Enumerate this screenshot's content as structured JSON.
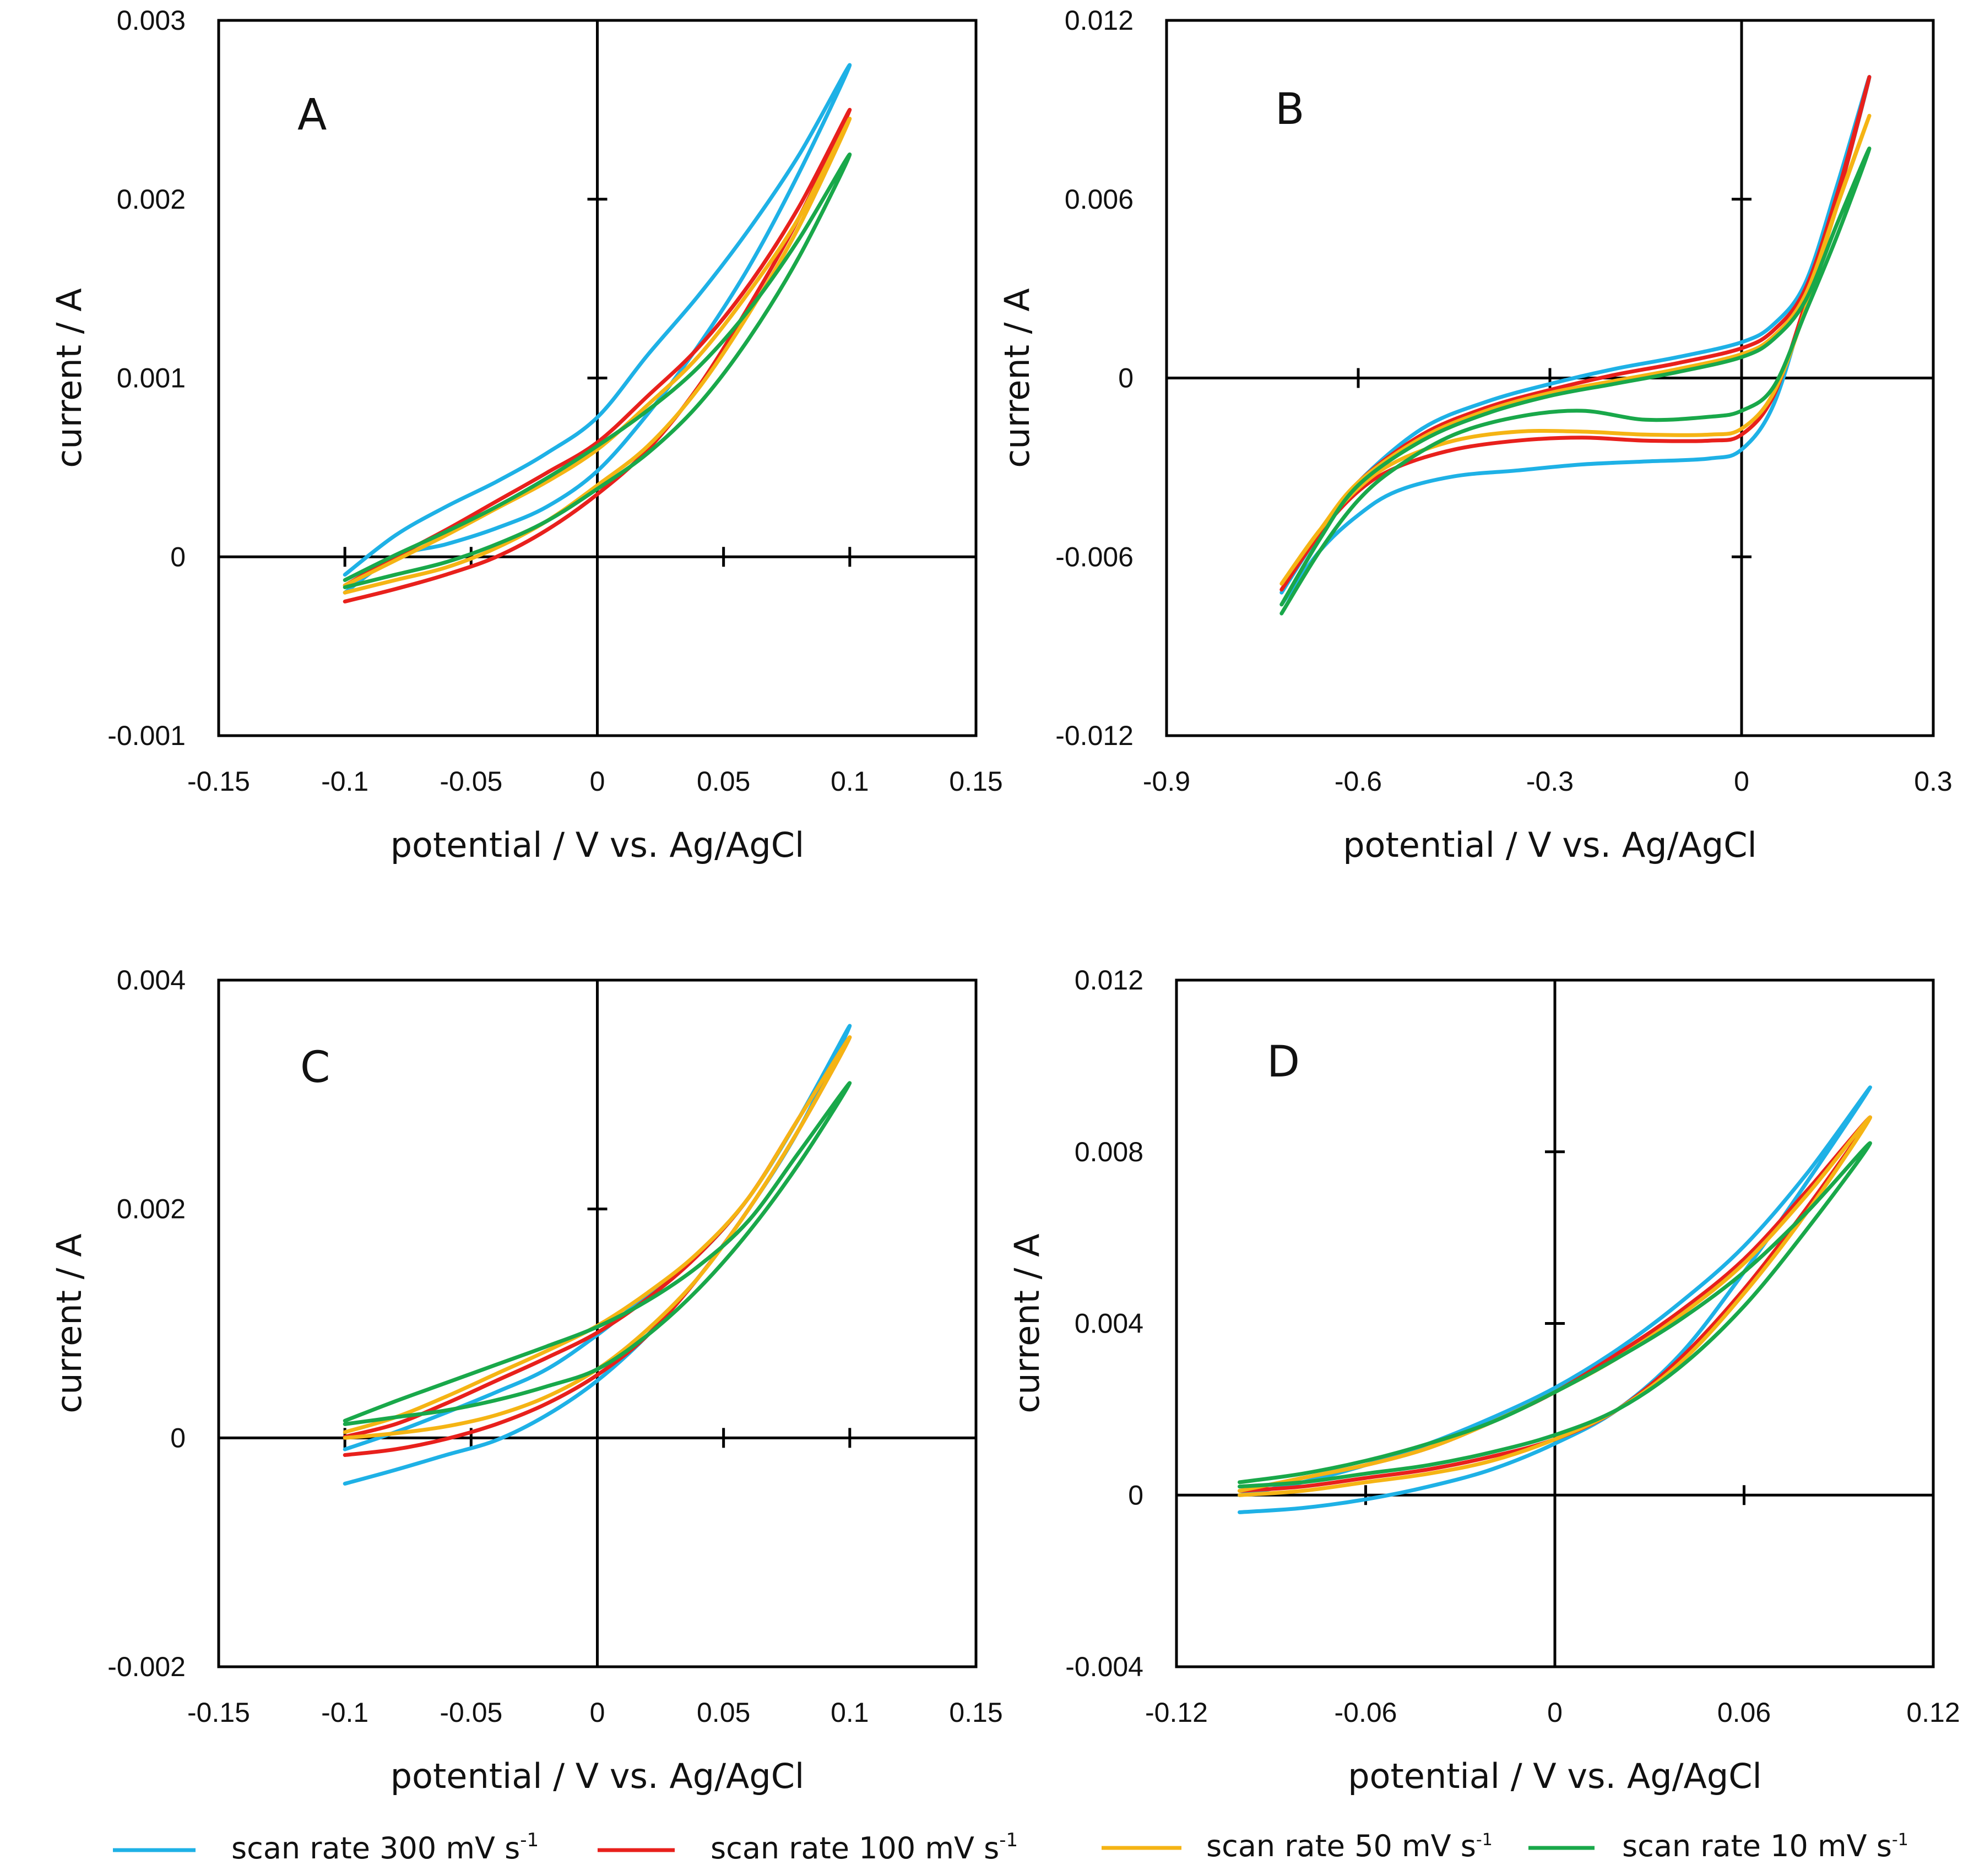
{
  "legend": [
    {
      "label": "scan rate 300 mV s",
      "sup": "-1",
      "color": "#1EB1E6"
    },
    {
      "label": "scan rate 100 mV s",
      "sup": "-1",
      "color": "#E8201C"
    },
    {
      "label": "scan rate 50 mV s",
      "sup": "-1",
      "color": "#F5B414"
    },
    {
      "label": "scan rate 10 mV s",
      "sup": "-1",
      "color": "#19A84A"
    }
  ],
  "chart_data": [
    {
      "type": "line",
      "panel": "A",
      "title": "A",
      "xlabel": "potential / V vs. Ag/AgCl",
      "ylabel": "current / A",
      "xlim": [
        -0.15,
        0.15
      ],
      "ylim": [
        -0.001,
        0.003
      ],
      "xticks": [
        "-0.15",
        "-0.1",
        "-0.05",
        "0",
        "0.05",
        "0.1",
        "0.15"
      ],
      "xtick_values": [
        -0.15,
        -0.1,
        -0.05,
        0,
        0.05,
        0.1,
        0.15
      ],
      "yticks": [
        "-0.001",
        "0",
        "0.001",
        "0.002",
        "0.003"
      ],
      "ytick_values": [
        -0.001,
        0,
        0.001,
        0.002,
        0.003
      ],
      "series": [
        {
          "name": "scan rate 300 mV s-1",
          "color": "#1EB1E6",
          "x": [
            -0.1,
            -0.08,
            -0.06,
            -0.04,
            -0.02,
            0.0,
            0.02,
            0.04,
            0.06,
            0.08,
            0.1,
            0.08,
            0.06,
            0.04,
            0.02,
            0.0,
            -0.02,
            -0.04,
            -0.06,
            -0.08,
            -0.1
          ],
          "y": [
            -0.0002,
            0.0,
            7e-05,
            0.00016,
            0.00028,
            0.00048,
            0.0008,
            0.00118,
            0.00162,
            0.00215,
            0.00275,
            0.00225,
            0.00183,
            0.00146,
            0.00113,
            0.00078,
            0.00058,
            0.00042,
            0.00028,
            0.00012,
            -0.0001
          ]
        },
        {
          "name": "scan rate 100 mV s-1",
          "color": "#E8201C",
          "x": [
            -0.1,
            -0.08,
            -0.06,
            -0.04,
            -0.02,
            0.0,
            0.02,
            0.04,
            0.06,
            0.08,
            0.1,
            0.08,
            0.06,
            0.04,
            0.02,
            0.0,
            -0.02,
            -0.04,
            -0.06,
            -0.08,
            -0.1
          ],
          "y": [
            -0.00025,
            -0.00018,
            -0.0001,
            0.0,
            0.00015,
            0.00035,
            0.0006,
            0.00095,
            0.0014,
            0.0019,
            0.0025,
            0.00196,
            0.00152,
            0.00117,
            0.0009,
            0.00064,
            0.00047,
            0.00031,
            0.00015,
            0.0,
            -0.00016
          ]
        },
        {
          "name": "scan rate 50 mV s-1",
          "color": "#F5B414",
          "x": [
            -0.1,
            -0.08,
            -0.06,
            -0.04,
            -0.02,
            0.0,
            0.02,
            0.04,
            0.06,
            0.08,
            0.1,
            0.08,
            0.06,
            0.04,
            0.02,
            0.0,
            -0.02,
            -0.04,
            -0.06,
            -0.08,
            -0.1
          ],
          "y": [
            -0.0002,
            -0.00013,
            -6e-05,
            5e-05,
            0.0002,
            0.0004,
            0.00062,
            0.00094,
            0.00136,
            0.00185,
            0.00245,
            0.0019,
            0.00148,
            0.00112,
            0.00085,
            0.0006,
            0.00042,
            0.00027,
            0.00012,
            -2e-05,
            -0.00016
          ]
        },
        {
          "name": "scan rate 10 mV s-1",
          "color": "#19A84A",
          "x": [
            -0.1,
            -0.08,
            -0.06,
            -0.04,
            -0.02,
            0.0,
            0.02,
            0.04,
            0.06,
            0.08,
            0.1,
            0.08,
            0.06,
            0.04,
            0.02,
            0.0,
            -0.02,
            -0.04,
            -0.06,
            -0.08,
            -0.1
          ],
          "y": [
            -0.00017,
            -0.0001,
            -3e-05,
            7e-05,
            0.0002,
            0.00038,
            0.00058,
            0.00085,
            0.00122,
            0.00168,
            0.00225,
            0.00178,
            0.00138,
            0.00106,
            0.00082,
            0.00062,
            0.00044,
            0.00028,
            0.00014,
            1e-05,
            -0.00013
          ]
        }
      ]
    },
    {
      "type": "line",
      "panel": "B",
      "title": "B",
      "xlabel": "potential / V vs. Ag/AgCl",
      "ylabel": "current / A",
      "xlim": [
        -0.9,
        0.3
      ],
      "ylim": [
        -0.012,
        0.012
      ],
      "xticks": [
        "-0.9",
        "-0.6",
        "-0.3",
        "0",
        "0.3"
      ],
      "xtick_values": [
        -0.9,
        -0.6,
        -0.3,
        0,
        0.3
      ],
      "yticks": [
        "-0.012",
        "-0.006",
        "0",
        "0.006",
        "0.012"
      ],
      "ytick_values": [
        -0.012,
        -0.006,
        0,
        0.006,
        0.012
      ],
      "series": [
        {
          "name": "scan rate 300 mV s-1",
          "color": "#1EB1E6",
          "x": [
            -0.72,
            -0.66,
            -0.6,
            -0.54,
            -0.45,
            -0.35,
            -0.25,
            -0.15,
            -0.05,
            0.0,
            0.05,
            0.1,
            0.15,
            0.2,
            0.15,
            0.1,
            0.05,
            0.0,
            -0.1,
            -0.2,
            -0.3,
            -0.4,
            -0.5,
            -0.6,
            -0.66,
            -0.72
          ],
          "y": [
            -0.0076,
            -0.0058,
            -0.0046,
            -0.0038,
            -0.0033,
            -0.0031,
            -0.0029,
            -0.0028,
            -0.0027,
            -0.0024,
            -0.0009,
            0.0025,
            0.006,
            0.0101,
            0.0065,
            0.0032,
            0.0018,
            0.0012,
            0.0007,
            0.0003,
            -0.0002,
            -0.0008,
            -0.0017,
            -0.0035,
            -0.0052,
            -0.0072
          ]
        },
        {
          "name": "scan rate 100 mV s-1",
          "color": "#E8201C",
          "x": [
            -0.72,
            -0.66,
            -0.6,
            -0.54,
            -0.45,
            -0.35,
            -0.25,
            -0.15,
            -0.05,
            0.0,
            0.05,
            0.1,
            0.15,
            0.2,
            0.15,
            0.1,
            0.05,
            0.0,
            -0.1,
            -0.2,
            -0.3,
            -0.4,
            -0.5,
            -0.6,
            -0.66,
            -0.72
          ],
          "y": [
            -0.0071,
            -0.0052,
            -0.0038,
            -0.003,
            -0.0024,
            -0.0021,
            -0.002,
            -0.0021,
            -0.0021,
            -0.0019,
            -0.0006,
            0.0025,
            0.006,
            0.0101,
            0.0062,
            0.003,
            0.0016,
            0.001,
            0.0005,
            0.0001,
            -0.0004,
            -0.001,
            -0.0019,
            -0.0035,
            -0.0052,
            -0.0071
          ]
        },
        {
          "name": "scan rate 50 mV s-1",
          "color": "#F5B414",
          "x": [
            -0.72,
            -0.66,
            -0.6,
            -0.54,
            -0.45,
            -0.35,
            -0.25,
            -0.15,
            -0.05,
            0.0,
            0.05,
            0.1,
            0.15,
            0.2,
            0.15,
            0.1,
            0.05,
            0.0,
            -0.1,
            -0.2,
            -0.3,
            -0.4,
            -0.5,
            -0.6,
            -0.66,
            -0.72
          ],
          "y": [
            -0.0069,
            -0.0051,
            -0.0037,
            -0.0028,
            -0.0021,
            -0.0018,
            -0.0018,
            -0.0019,
            -0.0019,
            -0.0017,
            -0.0005,
            0.0023,
            0.0058,
            0.0088,
            0.0058,
            0.0028,
            0.0014,
            0.0008,
            0.0003,
            -0.0001,
            -0.0005,
            -0.0011,
            -0.002,
            -0.0035,
            -0.0051,
            -0.0069
          ]
        },
        {
          "name": "scan rate 10 mV s-1",
          "color": "#19A84A",
          "x": [
            -0.72,
            -0.66,
            -0.6,
            -0.54,
            -0.45,
            -0.35,
            -0.25,
            -0.15,
            -0.05,
            0.0,
            0.05,
            0.1,
            0.15,
            0.2,
            0.15,
            0.1,
            0.05,
            0.0,
            -0.1,
            -0.2,
            -0.3,
            -0.4,
            -0.5,
            -0.6,
            -0.66,
            -0.72
          ],
          "y": [
            -0.0079,
            -0.0058,
            -0.0041,
            -0.003,
            -0.0019,
            -0.0013,
            -0.0011,
            -0.0014,
            -0.0013,
            -0.0011,
            -0.0003,
            0.0022,
            0.0048,
            0.0077,
            0.0052,
            0.0026,
            0.0013,
            0.0007,
            0.0002,
            -0.0002,
            -0.0006,
            -0.0012,
            -0.0021,
            -0.0036,
            -0.0054,
            -0.0076
          ]
        }
      ]
    },
    {
      "type": "line",
      "panel": "C",
      "title": "C",
      "xlabel": "potential / V vs. Ag/AgCl",
      "ylabel": "current / A",
      "xlim": [
        -0.15,
        0.15
      ],
      "ylim": [
        -0.002,
        0.004
      ],
      "xticks": [
        "-0.15",
        "-0.1",
        "-0.05",
        "0",
        "0.05",
        "0.1",
        "0.15"
      ],
      "xtick_values": [
        -0.15,
        -0.1,
        -0.05,
        0,
        0.05,
        0.1,
        0.15
      ],
      "yticks": [
        "-0.002",
        "0",
        "0.002",
        "0.004"
      ],
      "ytick_values": [
        -0.002,
        0,
        0.002,
        0.004
      ],
      "series": [
        {
          "name": "scan rate 300 mV s-1",
          "color": "#1EB1E6",
          "x": [
            -0.1,
            -0.08,
            -0.06,
            -0.04,
            -0.02,
            0.0,
            0.02,
            0.04,
            0.06,
            0.08,
            0.1,
            0.08,
            0.06,
            0.04,
            0.02,
            0.0,
            -0.02,
            -0.04,
            -0.06,
            -0.08,
            -0.1
          ],
          "y": [
            -0.0004,
            -0.00028,
            -0.00015,
            -2e-05,
            0.0002,
            0.0005,
            0.0009,
            0.0014,
            0.002,
            0.0027,
            0.0036,
            0.0028,
            0.0021,
            0.0016,
            0.00125,
            0.0009,
            0.0006,
            0.0004,
            0.00022,
            5e-05,
            -0.0001
          ]
        },
        {
          "name": "scan rate 100 mV s-1",
          "color": "#E8201C",
          "x": [
            -0.1,
            -0.08,
            -0.06,
            -0.04,
            -0.02,
            0.0,
            0.02,
            0.04,
            0.06,
            0.08,
            0.1,
            0.08,
            0.06,
            0.04,
            0.02,
            0.0,
            -0.02,
            -0.04,
            -0.06,
            -0.08,
            -0.1
          ],
          "y": [
            -0.00015,
            -0.0001,
            -1e-05,
            0.00012,
            0.0003,
            0.00055,
            0.0009,
            0.0014,
            0.002,
            0.0027,
            0.0035,
            0.0028,
            0.0021,
            0.0016,
            0.00122,
            0.00092,
            0.0007,
            0.0005,
            0.0003,
            0.00012,
            1e-05
          ]
        },
        {
          "name": "scan rate 50 mV s-1",
          "color": "#F5B414",
          "x": [
            -0.1,
            -0.08,
            -0.06,
            -0.04,
            -0.02,
            0.0,
            0.02,
            0.04,
            0.06,
            0.08,
            0.1,
            0.08,
            0.06,
            0.04,
            0.02,
            0.0,
            -0.02,
            -0.04,
            -0.06,
            -0.08,
            -0.1
          ],
          "y": [
            0.0,
            4e-05,
            0.0001,
            0.0002,
            0.00036,
            0.0006,
            0.00095,
            0.0014,
            0.002,
            0.0027,
            0.0035,
            0.0028,
            0.0021,
            0.00162,
            0.00127,
            0.00098,
            0.00076,
            0.00056,
            0.00036,
            0.00018,
            5e-05
          ]
        },
        {
          "name": "scan rate 10 mV s-1",
          "color": "#19A84A",
          "x": [
            -0.1,
            -0.08,
            -0.06,
            -0.04,
            -0.02,
            0.0,
            0.02,
            0.04,
            0.06,
            0.08,
            0.1,
            0.08,
            0.06,
            0.04,
            0.02,
            0.0,
            -0.02,
            -0.04,
            -0.06,
            -0.08,
            -0.1
          ],
          "y": [
            0.00012,
            0.00018,
            0.00024,
            0.00033,
            0.00045,
            0.0006,
            0.0009,
            0.0013,
            0.0018,
            0.0024,
            0.0031,
            0.0025,
            0.0019,
            0.0015,
            0.0012,
            0.00097,
            0.0008,
            0.00064,
            0.00048,
            0.00032,
            0.00015
          ]
        }
      ]
    },
    {
      "type": "line",
      "panel": "D",
      "title": "D",
      "xlabel": "potential / V vs. Ag/AgCl",
      "ylabel": "current / A",
      "xlim": [
        -0.12,
        0.12
      ],
      "ylim": [
        -0.004,
        0.012
      ],
      "xticks": [
        "-0.12",
        "-0.06",
        "0",
        "0.06",
        "0.12"
      ],
      "xtick_values": [
        -0.12,
        -0.06,
        0,
        0.06,
        0.12
      ],
      "yticks": [
        "-0.004",
        "0",
        "0.004",
        "0.008",
        "0.012"
      ],
      "ytick_values": [
        -0.004,
        0,
        0.004,
        0.008,
        0.012
      ],
      "series": [
        {
          "name": "scan rate 300 mV s-1",
          "color": "#1EB1E6",
          "x": [
            -0.1,
            -0.08,
            -0.06,
            -0.04,
            -0.02,
            0.0,
            0.02,
            0.04,
            0.06,
            0.08,
            0.1,
            0.08,
            0.06,
            0.04,
            0.02,
            0.0,
            -0.02,
            -0.04,
            -0.06,
            -0.08,
            -0.1
          ],
          "y": [
            -0.0004,
            -0.0003,
            -0.0001,
            0.0002,
            0.0006,
            0.0012,
            0.002,
            0.0033,
            0.0052,
            0.0073,
            0.0095,
            0.0075,
            0.0058,
            0.0045,
            0.0034,
            0.0025,
            0.0018,
            0.0012,
            0.0007,
            0.0003,
            0.0
          ]
        },
        {
          "name": "scan rate 100 mV s-1",
          "color": "#E8201C",
          "x": [
            -0.1,
            -0.08,
            -0.06,
            -0.04,
            -0.02,
            0.0,
            0.02,
            0.04,
            0.06,
            0.08,
            0.1,
            0.08,
            0.06,
            0.04,
            0.02,
            0.0,
            -0.02,
            -0.04,
            -0.06,
            -0.08,
            -0.1
          ],
          "y": [
            0.0001,
            0.0002,
            0.0004,
            0.0006,
            0.0009,
            0.0013,
            0.002,
            0.0032,
            0.0048,
            0.0067,
            0.0088,
            0.0071,
            0.0055,
            0.0043,
            0.0033,
            0.0024,
            0.0017,
            0.0011,
            0.0007,
            0.0004,
            0.0001
          ]
        },
        {
          "name": "scan rate 50 mV s-1",
          "color": "#F5B414",
          "x": [
            -0.1,
            -0.08,
            -0.06,
            -0.04,
            -0.02,
            0.0,
            0.02,
            0.04,
            0.06,
            0.08,
            0.1,
            0.08,
            0.06,
            0.04,
            0.02,
            0.0,
            -0.02,
            -0.04,
            -0.06,
            -0.08,
            -0.1
          ],
          "y": [
            0.0,
            0.0001,
            0.0003,
            0.0005,
            0.0008,
            0.0013,
            0.002,
            0.0031,
            0.0047,
            0.0066,
            0.0088,
            0.007,
            0.0054,
            0.0042,
            0.0032,
            0.0024,
            0.0017,
            0.0011,
            0.0007,
            0.0004,
            0.0001
          ]
        },
        {
          "name": "scan rate 10 mV s-1",
          "color": "#19A84A",
          "x": [
            -0.1,
            -0.08,
            -0.06,
            -0.04,
            -0.02,
            0.0,
            0.02,
            0.04,
            0.06,
            0.08,
            0.1,
            0.08,
            0.06,
            0.04,
            0.02,
            0.0,
            -0.02,
            -0.04,
            -0.06,
            -0.08,
            -0.1
          ],
          "y": [
            0.0002,
            0.0003,
            0.0005,
            0.0007,
            0.001,
            0.0014,
            0.002,
            0.003,
            0.0044,
            0.0062,
            0.0082,
            0.0066,
            0.0052,
            0.0041,
            0.0032,
            0.0024,
            0.0017,
            0.0012,
            0.0008,
            0.0005,
            0.0003
          ]
        }
      ]
    }
  ]
}
